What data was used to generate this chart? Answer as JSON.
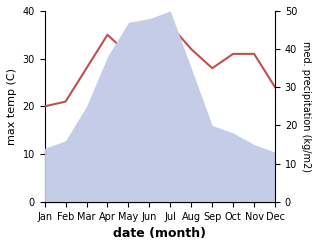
{
  "months": [
    "Jan",
    "Feb",
    "Mar",
    "Apr",
    "May",
    "Jun",
    "Jul",
    "Aug",
    "Sep",
    "Oct",
    "Nov",
    "Dec"
  ],
  "x": [
    1,
    2,
    3,
    4,
    5,
    6,
    7,
    8,
    9,
    10,
    11,
    12
  ],
  "temperature": [
    20,
    21,
    28,
    35,
    31,
    36,
    37,
    32,
    28,
    31,
    31,
    24
  ],
  "precipitation": [
    14,
    16,
    25,
    38,
    47,
    48,
    50,
    35,
    20,
    18,
    15,
    13
  ],
  "temp_color": "#c0504d",
  "precip_fill_color": "#c5cce8",
  "ylabel_left": "max temp (C)",
  "ylabel_right": "med. precipitation (kg/m2)",
  "xlabel": "date (month)",
  "ylim_left": [
    0,
    40
  ],
  "ylim_right": [
    0,
    50
  ],
  "yticks_left": [
    0,
    10,
    20,
    30,
    40
  ],
  "yticks_right": [
    0,
    10,
    20,
    30,
    40,
    50
  ],
  "background_color": "#ffffff"
}
